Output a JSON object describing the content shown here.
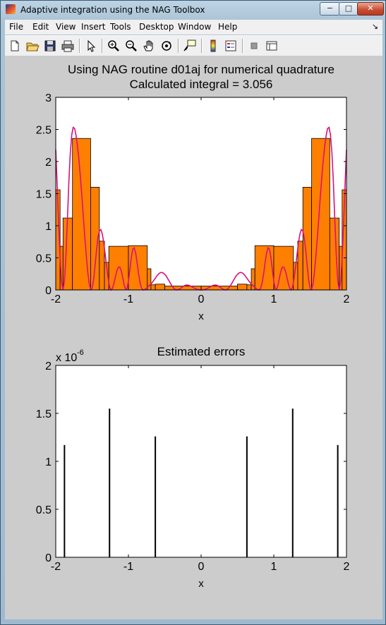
{
  "window": {
    "title": "Adaptive integration using the NAG Toolbox",
    "min_glyph": "−",
    "max_glyph": "□",
    "close_glyph": "✕"
  },
  "menu": {
    "items": [
      "File",
      "Edit",
      "View",
      "Insert",
      "Tools",
      "Desktop",
      "Window",
      "Help"
    ],
    "arrow": "↘"
  },
  "toolbar": {
    "icons": [
      "new-figure-icon",
      "open-file-icon",
      "save-icon",
      "print-icon",
      "pointer-icon",
      "zoom-in-icon",
      "zoom-out-icon",
      "pan-hand-icon",
      "rotate-3d-icon",
      "data-cursor-icon",
      "colorbar-icon",
      "legend-icon",
      "hide-plot-tools-icon",
      "show-plot-tools-icon"
    ]
  },
  "colors": {
    "bar": "#ff7f00",
    "curve": "#dd0f7a",
    "error": "#000000",
    "figure_bg": "#cccccc"
  },
  "chart_data": [
    {
      "type": "bar",
      "title": "Using NAG routine d01aj for numerical quadrature",
      "subtitle": "Calculated integral = 3.056",
      "xlabel": "x",
      "ylabel": "",
      "xlim": [
        -2,
        2
      ],
      "ylim": [
        0,
        3
      ],
      "xticks": [
        "-2",
        "-1",
        "0",
        "1",
        "2"
      ],
      "yticks": [
        "0",
        "0.5",
        "1",
        "1.5",
        "2",
        "2.5",
        "3"
      ],
      "bars": [
        {
          "x0": -2.0,
          "x1": -1.94,
          "h": 1.56
        },
        {
          "x0": -1.94,
          "x1": -1.9,
          "h": 0.68
        },
        {
          "x0": -1.9,
          "x1": -1.77,
          "h": 1.12
        },
        {
          "x0": -1.77,
          "x1": -1.52,
          "h": 2.36
        },
        {
          "x0": -1.52,
          "x1": -1.4,
          "h": 1.6
        },
        {
          "x0": -1.4,
          "x1": -1.33,
          "h": 0.76
        },
        {
          "x0": -1.33,
          "x1": -1.27,
          "h": 0.43
        },
        {
          "x0": -1.27,
          "x1": -1.0,
          "h": 0.68
        },
        {
          "x0": -1.0,
          "x1": -0.74,
          "h": 0.69
        },
        {
          "x0": -0.74,
          "x1": -0.69,
          "h": 0.33
        },
        {
          "x0": -0.69,
          "x1": -0.63,
          "h": 0.08
        },
        {
          "x0": -0.63,
          "x1": -0.5,
          "h": 0.09
        },
        {
          "x0": -0.5,
          "x1": 0.0,
          "h": 0.06
        },
        {
          "x0": 0.0,
          "x1": 0.5,
          "h": 0.06
        },
        {
          "x0": 0.5,
          "x1": 0.63,
          "h": 0.09
        },
        {
          "x0": 0.63,
          "x1": 0.69,
          "h": 0.08
        },
        {
          "x0": 0.69,
          "x1": 0.74,
          "h": 0.33
        },
        {
          "x0": 0.74,
          "x1": 1.0,
          "h": 0.69
        },
        {
          "x0": 1.0,
          "x1": 1.27,
          "h": 0.68
        },
        {
          "x0": 1.27,
          "x1": 1.33,
          "h": 0.43
        },
        {
          "x0": 1.33,
          "x1": 1.4,
          "h": 0.76
        },
        {
          "x0": 1.4,
          "x1": 1.52,
          "h": 1.6
        },
        {
          "x0": 1.52,
          "x1": 1.77,
          "h": 2.36
        },
        {
          "x0": 1.77,
          "x1": 1.9,
          "h": 1.12
        },
        {
          "x0": 1.9,
          "x1": 1.94,
          "h": 0.68
        },
        {
          "x0": 1.94,
          "x1": 2.0,
          "h": 1.56
        }
      ],
      "curve": {
        "x": [
          -2.0,
          -1.98,
          -1.96,
          -1.94,
          -1.92,
          -1.9,
          -1.88,
          -1.86,
          -1.84,
          -1.82,
          -1.8,
          -1.78,
          -1.76,
          -1.74,
          -1.72,
          -1.7,
          -1.68,
          -1.66,
          -1.64,
          -1.62,
          -1.6,
          -1.58,
          -1.56,
          -1.54,
          -1.52,
          -1.5,
          -1.48,
          -1.46,
          -1.44,
          -1.42,
          -1.4,
          -1.38,
          -1.36,
          -1.34,
          -1.32,
          -1.3,
          -1.28,
          -1.26,
          -1.24,
          -1.22,
          -1.2,
          -1.18,
          -1.16,
          -1.14,
          -1.12,
          -1.1,
          -1.08,
          -1.06,
          -1.04,
          -1.02,
          -1.0,
          -0.98,
          -0.96,
          -0.94,
          -0.92,
          -0.9,
          -0.88,
          -0.86,
          -0.84,
          -0.82,
          -0.8,
          -0.78,
          -0.76,
          -0.74,
          -0.72,
          -0.7,
          -0.68,
          -0.66,
          -0.64,
          -0.62,
          -0.6,
          -0.58,
          -0.56,
          -0.54,
          -0.52,
          -0.5,
          -0.48,
          -0.46,
          -0.44,
          -0.42,
          -0.4,
          -0.38,
          -0.36,
          -0.34,
          -0.32,
          -0.3,
          -0.28,
          -0.26,
          -0.24,
          -0.22,
          -0.2,
          -0.18,
          -0.16,
          -0.14,
          -0.12,
          -0.1,
          -0.08,
          -0.06,
          -0.04,
          -0.02,
          0.0,
          0.02,
          0.04,
          0.06,
          0.08,
          0.1,
          0.12,
          0.14,
          0.16,
          0.18,
          0.2,
          0.22,
          0.24,
          0.26,
          0.28,
          0.3,
          0.32,
          0.34,
          0.36,
          0.38,
          0.4,
          0.42,
          0.44,
          0.46,
          0.48,
          0.5,
          0.52,
          0.54,
          0.56,
          0.58,
          0.6,
          0.62,
          0.64,
          0.66,
          0.68,
          0.7,
          0.72,
          0.74,
          0.76,
          0.78,
          0.8,
          0.82,
          0.84,
          0.86,
          0.88,
          0.9,
          0.92,
          0.94,
          0.96,
          0.98,
          1.0,
          1.02,
          1.04,
          1.06,
          1.08,
          1.1,
          1.12,
          1.14,
          1.16,
          1.18,
          1.2,
          1.22,
          1.24,
          1.26,
          1.28,
          1.3,
          1.32,
          1.34,
          1.36,
          1.38,
          1.4,
          1.42,
          1.44,
          1.46,
          1.48,
          1.5,
          1.52,
          1.54,
          1.56,
          1.58,
          1.6,
          1.62,
          1.64,
          1.66,
          1.68,
          1.7,
          1.72,
          1.74,
          1.76,
          1.78,
          1.8,
          1.82,
          1.84,
          1.86,
          1.88,
          1.9,
          1.92,
          1.94,
          1.96,
          1.98,
          2.0
        ],
        "y": [
          2.185,
          1.614,
          1.019,
          0.497,
          0.124,
          0.0,
          0.147,
          0.532,
          1.08,
          1.659,
          2.129,
          2.418,
          2.532,
          2.514,
          2.406,
          2.235,
          2.013,
          1.749,
          1.454,
          1.14,
          0.826,
          0.534,
          0.284,
          0.098,
          0.004,
          0.024,
          0.155,
          0.369,
          0.608,
          0.804,
          0.918,
          0.94,
          0.875,
          0.74,
          0.56,
          0.363,
          0.183,
          0.054,
          0.0,
          0.022,
          0.101,
          0.202,
          0.294,
          0.352,
          0.357,
          0.302,
          0.2,
          0.087,
          0.012,
          0.021,
          0.134,
          0.319,
          0.509,
          0.635,
          0.656,
          0.572,
          0.419,
          0.25,
          0.112,
          0.03,
          0.0,
          0.003,
          0.02,
          0.04,
          0.06,
          0.082,
          0.106,
          0.134,
          0.166,
          0.199,
          0.23,
          0.254,
          0.269,
          0.272,
          0.263,
          0.243,
          0.214,
          0.178,
          0.138,
          0.098,
          0.062,
          0.031,
          0.01,
          0.001,
          0.002,
          0.012,
          0.027,
          0.044,
          0.06,
          0.071,
          0.076,
          0.075,
          0.069,
          0.058,
          0.046,
          0.033,
          0.021,
          0.011,
          0.004,
          0.001,
          0.0,
          0.001,
          0.004,
          0.011,
          0.021,
          0.033,
          0.046,
          0.058,
          0.069,
          0.075,
          0.076,
          0.071,
          0.06,
          0.044,
          0.027,
          0.012,
          0.002,
          0.001,
          0.01,
          0.031,
          0.062,
          0.098,
          0.138,
          0.178,
          0.214,
          0.243,
          0.263,
          0.272,
          0.269,
          0.254,
          0.23,
          0.199,
          0.166,
          0.134,
          0.106,
          0.082,
          0.06,
          0.04,
          0.02,
          0.003,
          0.0,
          0.03,
          0.112,
          0.25,
          0.419,
          0.572,
          0.656,
          0.635,
          0.509,
          0.319,
          0.134,
          0.021,
          0.012,
          0.087,
          0.2,
          0.302,
          0.357,
          0.352,
          0.294,
          0.202,
          0.101,
          0.022,
          0.0,
          0.054,
          0.183,
          0.363,
          0.56,
          0.74,
          0.875,
          0.94,
          0.918,
          0.804,
          0.608,
          0.369,
          0.155,
          0.024,
          0.004,
          0.098,
          0.284,
          0.534,
          0.826,
          1.14,
          1.454,
          1.749,
          2.013,
          2.235,
          2.406,
          2.514,
          2.532,
          2.418,
          2.129,
          1.659,
          1.08,
          0.532,
          0.147,
          0.0,
          0.124,
          0.497,
          1.019,
          1.614,
          2.185
        ]
      }
    },
    {
      "type": "bar",
      "title": "Estimated errors",
      "xlabel": "x",
      "ylabel": "",
      "xlim": [
        -2,
        2
      ],
      "ylim": [
        0,
        2
      ],
      "ymultiplier": "x 10",
      "yexponent": "-6",
      "xticks": [
        "-2",
        "-1",
        "0",
        "1",
        "2"
      ],
      "yticks": [
        "0",
        "0.5",
        "1",
        "1.5",
        "2"
      ],
      "stems": [
        {
          "x": -1.88,
          "y": 1.17
        },
        {
          "x": -1.26,
          "y": 1.55
        },
        {
          "x": -0.63,
          "y": 1.26
        },
        {
          "x": 0.63,
          "y": 1.26
        },
        {
          "x": 1.26,
          "y": 1.55
        },
        {
          "x": 1.88,
          "y": 1.17
        }
      ]
    }
  ]
}
